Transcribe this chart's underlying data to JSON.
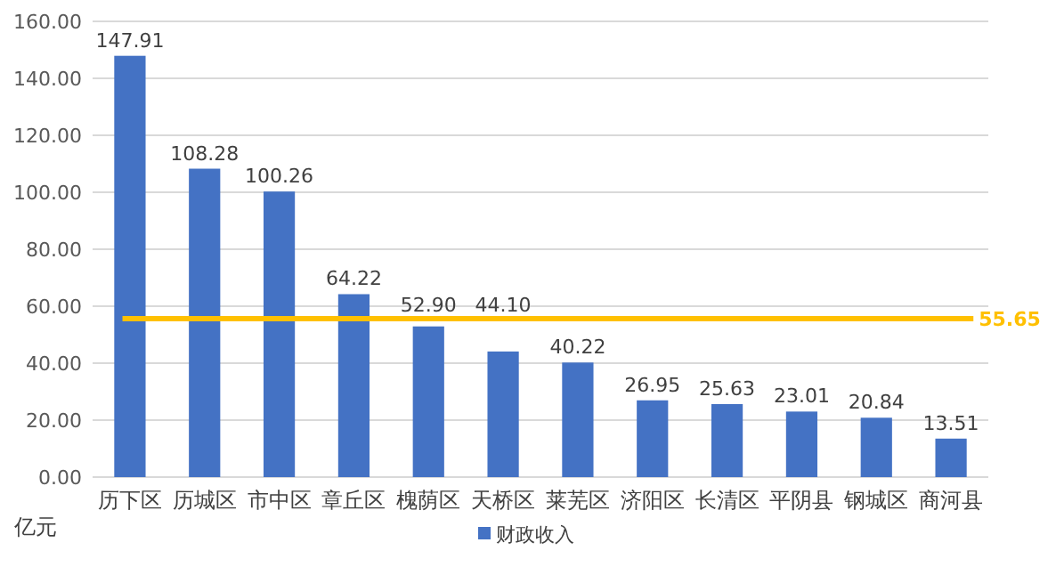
{
  "chart_data": {
    "type": "bar",
    "categories": [
      "历下区",
      "历城区",
      "市中区",
      "章丘区",
      "槐荫区",
      "天桥区",
      "莱芜区",
      "济阳区",
      "长清区",
      "平阴县",
      "钢城区",
      "商河县"
    ],
    "series": [
      {
        "name": "财政收入",
        "color": "#4472c4",
        "values": [
          147.91,
          108.28,
          100.26,
          64.22,
          52.9,
          44.1,
          40.22,
          26.95,
          25.63,
          23.01,
          20.84,
          13.51
        ],
        "value_labels": [
          "147.91",
          "108.28",
          "100.26",
          "64.22",
          "52.90",
          "44.10",
          "40.22",
          "26.95",
          "25.63",
          "23.01",
          "20.84",
          "13.51"
        ]
      }
    ],
    "ylabel": "亿元",
    "ylim": [
      0,
      160
    ],
    "yticks": [
      {
        "value": 0,
        "label": "0.00"
      },
      {
        "value": 20,
        "label": "20.00"
      },
      {
        "value": 40,
        "label": "40.00"
      },
      {
        "value": 60,
        "label": "60.00"
      },
      {
        "value": 80,
        "label": "80.00"
      },
      {
        "value": 100,
        "label": "100.00"
      },
      {
        "value": 120,
        "label": "120.00"
      },
      {
        "value": 140,
        "label": "140.00"
      },
      {
        "value": 160,
        "label": "160.00"
      }
    ],
    "ref_lines": [
      {
        "axis": "y",
        "value": 55.65,
        "label": "55.65",
        "color": "#ffc000"
      }
    ],
    "grid": "y",
    "legend": "bottom"
  }
}
